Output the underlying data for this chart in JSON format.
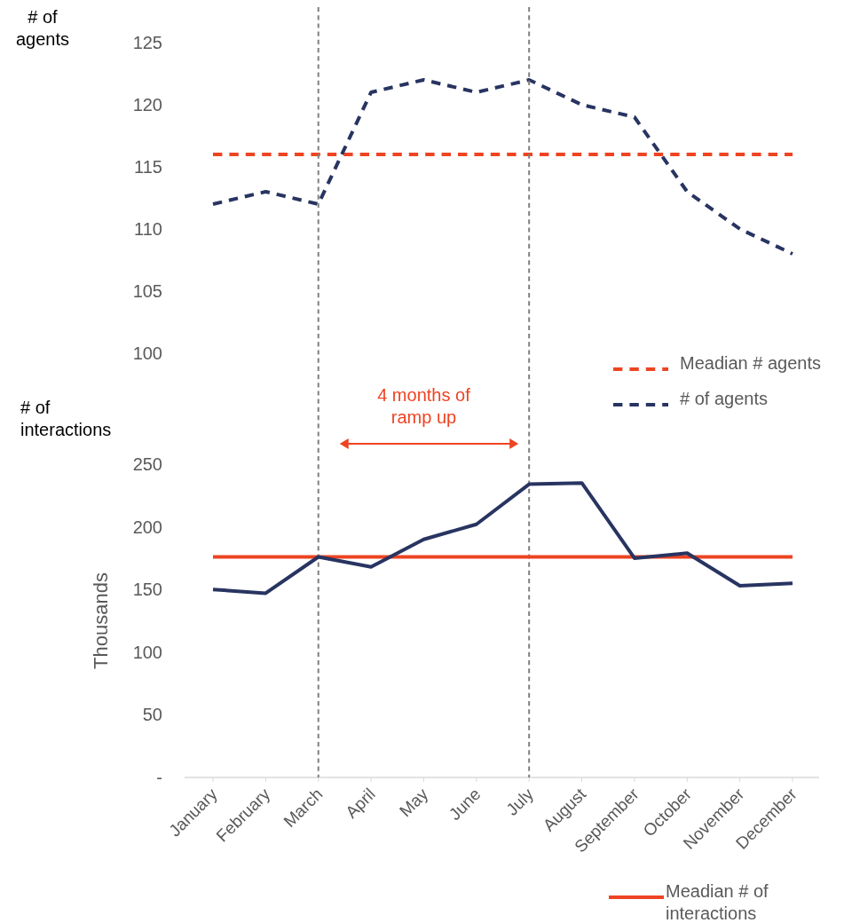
{
  "chart_data": [
    {
      "type": "line",
      "title": "# of agents",
      "categories": [
        null,
        null,
        null,
        null,
        null,
        null,
        null,
        null,
        null,
        null,
        null,
        null
      ],
      "series": [
        {
          "name": "Meadian # agents",
          "color": "#ee4422",
          "line_style": "dashed",
          "values": [
            116,
            116,
            116,
            116,
            116,
            116,
            116,
            116,
            116,
            116,
            116,
            116
          ]
        },
        {
          "name": "# of agents",
          "color": "#283461",
          "line_style": "dashed",
          "values": [
            112,
            113,
            112,
            121,
            122,
            121,
            122,
            120,
            119,
            113,
            110,
            108
          ]
        }
      ],
      "ylim": [
        100,
        125
      ],
      "yticks": [
        100,
        105,
        110,
        115,
        120,
        125
      ],
      "tick_labels": "y",
      "grid": false,
      "legend": "bottom right",
      "marker": "none"
    },
    {
      "type": "line",
      "title": "# of interactions",
      "ylabel": "Thousands",
      "categories": [
        "January",
        "February",
        "March",
        "April",
        "May",
        "June",
        "July",
        "August",
        "September",
        "October",
        "November",
        "December"
      ],
      "series": [
        {
          "name": "Meadian # of interactions",
          "color": "#ee4422",
          "line_style": "solid",
          "values": [
            176,
            176,
            176,
            176,
            176,
            176,
            176,
            176,
            176,
            176,
            176,
            176
          ]
        },
        {
          "color": "#283461",
          "line_style": "solid",
          "values": [
            150,
            147,
            176,
            168,
            190,
            202,
            234,
            235,
            175,
            179,
            153,
            155
          ]
        }
      ],
      "ylim": [
        0,
        250
      ],
      "yticks": [
        {
          "value": 0,
          "label": "-"
        },
        50,
        100,
        150,
        200,
        250
      ],
      "grid": false,
      "legend": "bottom",
      "marker": "none",
      "annotations": [
        "4 months of ramp up"
      ],
      "ref_lines": [
        {
          "axis": "x",
          "value": "March",
          "color": "#808080",
          "line_style": "dashed"
        },
        {
          "axis": "x",
          "value": "July",
          "color": "#808080",
          "line_style": "dashed"
        }
      ]
    }
  ]
}
